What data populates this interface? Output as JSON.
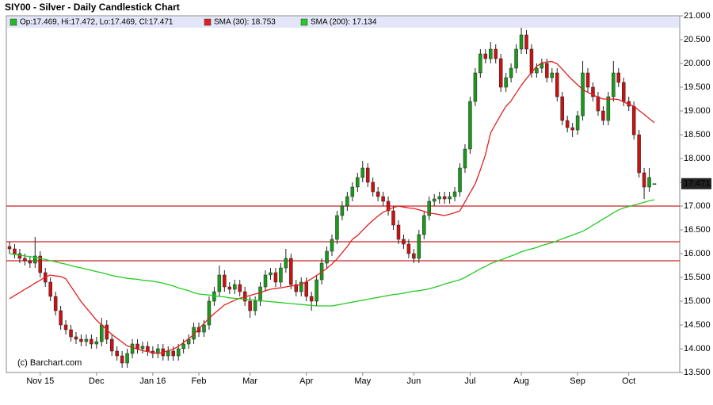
{
  "chart_data": {
    "type": "candlestick",
    "title": "SIY00 - Silver - Daily Candlestick Chart",
    "watermark": "(c) Barchart.com",
    "legend_ohlc": {
      "label": "Op:17.469, Hi:17.472, Lo:17.469, Cl:17.471",
      "color": "#22bb22"
    },
    "up_color": "#1a9a1a",
    "down_color": "#cc1111",
    "categories": [
      null,
      null,
      null,
      null,
      null,
      null,
      "Nov 15",
      null,
      null,
      null,
      null,
      null,
      null,
      null,
      null,
      null,
      null,
      "Dec",
      null,
      null,
      null,
      null,
      null,
      null,
      null,
      null,
      null,
      null,
      "Jan 16",
      null,
      null,
      null,
      null,
      null,
      null,
      null,
      null,
      "Feb",
      null,
      null,
      null,
      null,
      null,
      null,
      null,
      null,
      null,
      "Mar",
      null,
      null,
      null,
      null,
      null,
      null,
      null,
      null,
      null,
      null,
      "Apr",
      null,
      null,
      null,
      null,
      null,
      null,
      null,
      null,
      null,
      null,
      "May",
      null,
      null,
      null,
      null,
      null,
      null,
      null,
      null,
      null,
      "Jun",
      null,
      null,
      null,
      null,
      null,
      null,
      null,
      null,
      null,
      null,
      "Jul",
      null,
      null,
      null,
      null,
      null,
      null,
      null,
      null,
      null,
      "Aug",
      null,
      null,
      null,
      null,
      null,
      null,
      null,
      null,
      null,
      null,
      "Sep",
      null,
      null,
      null,
      null,
      null,
      null,
      null,
      null,
      null,
      "Oct",
      null,
      null,
      null,
      null,
      null
    ],
    "open": [
      16.15,
      16.1,
      16.0,
      15.9,
      15.85,
      15.8,
      15.95,
      15.6,
      15.4,
      15.1,
      14.8,
      14.5,
      14.4,
      14.25,
      14.2,
      14.15,
      14.2,
      14.1,
      14.15,
      14.5,
      14.2,
      13.95,
      13.85,
      13.7,
      13.9,
      14.1,
      14.0,
      14.05,
      13.95,
      13.9,
      14.0,
      13.85,
      13.95,
      13.85,
      14.0,
      14.1,
      14.2,
      14.45,
      14.35,
      14.5,
      15.0,
      15.2,
      15.55,
      15.3,
      15.25,
      15.35,
      15.2,
      15.0,
      14.8,
      15.0,
      15.3,
      15.55,
      15.6,
      15.4,
      15.7,
      15.9,
      15.35,
      15.2,
      15.4,
      15.1,
      15.0,
      15.45,
      15.8,
      16.05,
      16.3,
      16.8,
      17.0,
      17.2,
      17.4,
      17.6,
      17.8,
      17.5,
      17.3,
      17.2,
      17.1,
      16.9,
      16.6,
      16.3,
      16.2,
      16.0,
      15.9,
      16.4,
      16.8,
      17.1,
      17.15,
      17.2,
      17.15,
      17.2,
      17.3,
      17.8,
      18.2,
      19.2,
      19.8,
      20.2,
      20.1,
      20.3,
      20.1,
      19.5,
      19.7,
      19.9,
      20.3,
      20.6,
      20.3,
      19.8,
      19.9,
      20.0,
      19.7,
      19.8,
      19.3,
      18.8,
      18.65,
      18.6,
      18.9,
      19.8,
      19.5,
      19.3,
      19.0,
      18.8,
      19.3,
      19.8,
      19.6,
      19.2,
      19.1,
      18.5,
      17.7,
      17.4,
      17.469
    ],
    "high": [
      16.25,
      16.2,
      16.1,
      16.0,
      15.95,
      16.35,
      16.05,
      15.7,
      15.5,
      15.2,
      14.9,
      14.6,
      14.5,
      14.35,
      14.3,
      14.3,
      14.3,
      14.25,
      14.65,
      14.6,
      14.3,
      14.05,
      13.95,
      14.0,
      14.2,
      14.2,
      14.15,
      14.15,
      14.05,
      14.1,
      14.1,
      14.05,
      14.05,
      14.1,
      14.2,
      14.3,
      14.55,
      14.55,
      14.6,
      15.1,
      15.3,
      15.75,
      15.65,
      15.4,
      15.45,
      15.45,
      15.3,
      15.1,
      15.1,
      15.4,
      15.65,
      15.7,
      15.7,
      15.8,
      16.1,
      16.0,
      15.45,
      15.5,
      15.5,
      15.2,
      15.55,
      15.9,
      16.15,
      16.4,
      16.9,
      17.1,
      17.3,
      17.5,
      17.7,
      17.95,
      17.9,
      17.6,
      17.4,
      17.3,
      17.2,
      17.0,
      16.7,
      16.4,
      16.3,
      16.1,
      16.5,
      16.9,
      17.2,
      17.25,
      17.3,
      17.3,
      17.3,
      17.4,
      17.9,
      18.3,
      19.3,
      19.9,
      20.3,
      20.3,
      20.45,
      20.4,
      20.2,
      19.8,
      20.0,
      20.4,
      20.75,
      20.7,
      20.4,
      20.0,
      20.1,
      20.1,
      19.9,
      19.9,
      19.4,
      18.9,
      18.75,
      19.0,
      20.05,
      19.9,
      19.6,
      19.4,
      19.1,
      19.4,
      20.05,
      19.9,
      19.7,
      19.3,
      19.2,
      18.6,
      17.8,
      17.8,
      17.472
    ],
    "low": [
      16.0,
      15.9,
      15.8,
      15.75,
      15.7,
      15.7,
      15.5,
      15.3,
      15.0,
      14.7,
      14.4,
      14.3,
      14.15,
      14.1,
      14.05,
      14.05,
      14.0,
      14.0,
      14.05,
      14.1,
      13.85,
      13.75,
      13.6,
      13.6,
      13.8,
      13.9,
      13.9,
      13.85,
      13.8,
      13.8,
      13.75,
      13.75,
      13.75,
      13.75,
      13.9,
      14.0,
      14.1,
      14.25,
      14.25,
      14.4,
      14.9,
      15.1,
      15.2,
      15.15,
      15.15,
      15.1,
      14.9,
      14.65,
      14.7,
      14.9,
      15.2,
      15.45,
      15.3,
      15.3,
      15.6,
      15.25,
      15.1,
      15.1,
      15.0,
      14.8,
      14.9,
      15.35,
      15.7,
      15.95,
      16.2,
      16.7,
      16.9,
      17.1,
      17.3,
      17.5,
      17.4,
      17.2,
      17.1,
      17.0,
      16.8,
      16.5,
      16.2,
      16.1,
      15.9,
      15.8,
      15.8,
      16.3,
      16.7,
      17.0,
      17.05,
      17.05,
      17.05,
      17.1,
      17.2,
      17.7,
      18.1,
      19.1,
      19.7,
      20.0,
      20.0,
      20.0,
      19.4,
      19.4,
      19.6,
      19.8,
      20.2,
      20.2,
      19.7,
      19.7,
      19.8,
      19.6,
      19.6,
      19.2,
      18.7,
      18.55,
      18.45,
      18.5,
      18.8,
      19.4,
      19.2,
      18.9,
      18.7,
      18.7,
      19.2,
      19.5,
      19.1,
      19.0,
      18.4,
      17.6,
      17.15,
      17.3,
      17.469
    ],
    "close": [
      16.1,
      16.0,
      15.9,
      15.85,
      15.8,
      15.95,
      15.6,
      15.4,
      15.1,
      14.8,
      14.5,
      14.4,
      14.25,
      14.2,
      14.15,
      14.2,
      14.1,
      14.15,
      14.5,
      14.2,
      13.95,
      13.85,
      13.7,
      13.9,
      14.1,
      14.0,
      14.05,
      13.95,
      13.9,
      14.0,
      13.85,
      13.95,
      13.85,
      14.0,
      14.1,
      14.2,
      14.45,
      14.35,
      14.5,
      15.0,
      15.2,
      15.55,
      15.3,
      15.25,
      15.35,
      15.2,
      15.0,
      14.8,
      15.0,
      15.3,
      15.55,
      15.6,
      15.4,
      15.7,
      15.9,
      15.35,
      15.2,
      15.4,
      15.1,
      15.0,
      15.45,
      15.8,
      16.05,
      16.3,
      16.8,
      17.0,
      17.2,
      17.4,
      17.6,
      17.8,
      17.5,
      17.3,
      17.2,
      17.1,
      16.9,
      16.6,
      16.3,
      16.2,
      16.0,
      15.9,
      16.4,
      16.8,
      17.1,
      17.15,
      17.2,
      17.15,
      17.2,
      17.3,
      17.8,
      18.2,
      19.2,
      19.8,
      20.2,
      20.1,
      20.3,
      20.1,
      19.5,
      19.7,
      19.9,
      20.3,
      20.6,
      20.3,
      19.8,
      19.9,
      20.0,
      19.7,
      19.8,
      19.3,
      18.8,
      18.65,
      18.6,
      18.9,
      19.8,
      19.5,
      19.3,
      19.0,
      18.8,
      19.3,
      19.8,
      19.6,
      19.2,
      19.1,
      18.5,
      17.7,
      17.4,
      17.6,
      17.471
    ],
    "series": [
      {
        "name": "SMA (30): 18.753",
        "color": "#e02020",
        "values": [
          15.05,
          15.12,
          15.18,
          15.25,
          15.31,
          15.38,
          15.44,
          15.51,
          15.55,
          15.53,
          15.52,
          15.47,
          15.31,
          15.15,
          14.99,
          14.86,
          14.73,
          14.6,
          14.5,
          14.4,
          14.3,
          14.22,
          14.14,
          14.06,
          14.03,
          13.99,
          13.96,
          13.94,
          13.92,
          13.9,
          13.92,
          13.96,
          13.99,
          14.05,
          14.13,
          14.21,
          14.3,
          14.42,
          14.53,
          14.64,
          14.74,
          14.83,
          14.92,
          14.97,
          15.02,
          15.06,
          15.09,
          15.12,
          15.15,
          15.18,
          15.22,
          15.25,
          15.27,
          15.28,
          15.3,
          15.32,
          15.33,
          15.35,
          15.41,
          15.47,
          15.54,
          15.61,
          15.69,
          15.78,
          15.89,
          16.02,
          16.15,
          16.3,
          16.38,
          16.49,
          16.6,
          16.7,
          16.79,
          16.87,
          16.92,
          16.97,
          17.0,
          16.98,
          16.96,
          16.95,
          16.92,
          16.89,
          16.85,
          16.84,
          16.82,
          16.8,
          16.83,
          16.86,
          16.9,
          17.09,
          17.28,
          17.47,
          17.76,
          18.08,
          18.54,
          18.73,
          18.92,
          19.1,
          19.21,
          19.38,
          19.54,
          19.68,
          19.81,
          19.94,
          20.01,
          20.03,
          20.04,
          19.99,
          19.88,
          19.76,
          19.65,
          19.55,
          19.45,
          19.39,
          19.34,
          19.29,
          19.25,
          19.25,
          19.25,
          19.24,
          19.19,
          19.14,
          19.1,
          19.01,
          18.93,
          18.84,
          18.753
        ]
      },
      {
        "name": "SMA (200): 17.134",
        "color": "#22cc22",
        "values": [
          16.0,
          15.98,
          15.97,
          15.95,
          15.94,
          15.92,
          15.9,
          15.88,
          15.85,
          15.83,
          15.8,
          15.78,
          15.75,
          15.72,
          15.7,
          15.67,
          15.65,
          15.62,
          15.6,
          15.57,
          15.54,
          15.52,
          15.5,
          15.48,
          15.47,
          15.46,
          15.44,
          15.43,
          15.42,
          15.4,
          15.38,
          15.35,
          15.32,
          15.28,
          15.25,
          15.22,
          15.18,
          15.15,
          15.14,
          15.13,
          15.11,
          15.1,
          15.09,
          15.07,
          15.06,
          15.05,
          15.04,
          15.03,
          15.02,
          15.01,
          15.0,
          14.99,
          14.98,
          14.97,
          14.96,
          14.95,
          14.94,
          14.93,
          14.92,
          14.91,
          14.9,
          14.9,
          14.9,
          14.9,
          14.92,
          14.94,
          14.96,
          14.98,
          15.0,
          15.02,
          15.04,
          15.06,
          15.08,
          15.1,
          15.12,
          15.14,
          15.15,
          15.17,
          15.19,
          15.21,
          15.22,
          15.24,
          15.26,
          15.29,
          15.32,
          15.36,
          15.39,
          15.42,
          15.45,
          15.5,
          15.56,
          15.62,
          15.68,
          15.73,
          15.79,
          15.83,
          15.87,
          15.91,
          15.95,
          15.99,
          16.04,
          16.07,
          16.1,
          16.13,
          16.17,
          16.2,
          16.23,
          16.27,
          16.31,
          16.35,
          16.39,
          16.43,
          16.47,
          16.53,
          16.6,
          16.66,
          16.73,
          16.79,
          16.86,
          16.92,
          16.96,
          16.99,
          17.02,
          17.05,
          17.08,
          17.11,
          17.134
        ]
      }
    ],
    "hlines": [
      17.0,
      16.25,
      15.85
    ],
    "hline_color": "#cc2222",
    "ylim": [
      13.5,
      21.0
    ],
    "yticks": [
      {
        "value": 13.5,
        "label": "13.500"
      },
      {
        "value": 14.0,
        "label": "14.000"
      },
      {
        "value": 14.5,
        "label": "14.500"
      },
      {
        "value": 15.0,
        "label": "15.000"
      },
      {
        "value": 15.5,
        "label": "15.500"
      },
      {
        "value": 16.0,
        "label": "16.000"
      },
      {
        "value": 16.5,
        "label": "16.500"
      },
      {
        "value": 17.0,
        "label": "17.000"
      },
      {
        "value": 17.5,
        "label": "17.500"
      },
      {
        "value": 18.0,
        "label": "18.000"
      },
      {
        "value": 18.5,
        "label": "18.500"
      },
      {
        "value": 19.0,
        "label": "19.000"
      },
      {
        "value": 19.5,
        "label": "19.500"
      },
      {
        "value": 20.0,
        "label": "20.000"
      },
      {
        "value": 20.5,
        "label": "20.500"
      },
      {
        "value": 21.0,
        "label": "21.000"
      }
    ]
  }
}
